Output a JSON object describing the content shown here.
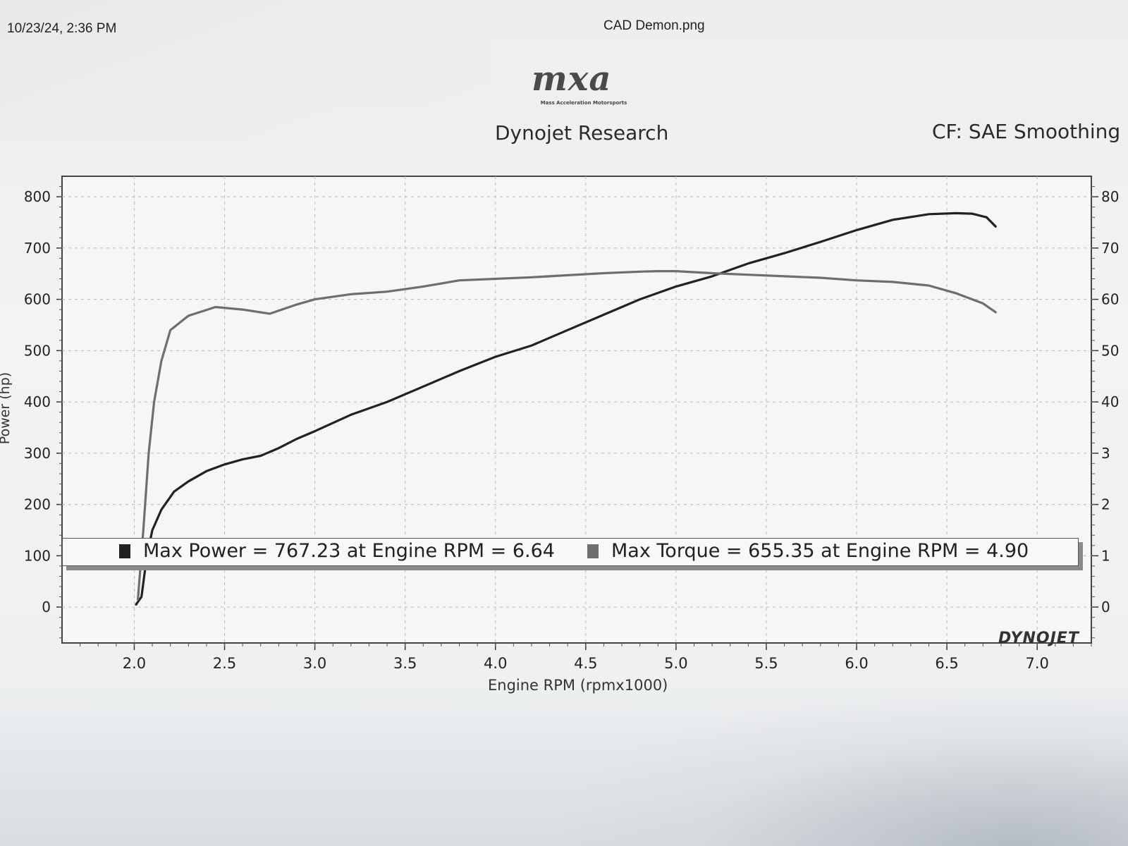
{
  "header": {
    "print_date": "10/23/24, 2:36 PM",
    "file_name": "CAD Demon.png"
  },
  "logo": {
    "text": "mxa",
    "subtitle": "Mass Acceleration Motorsports"
  },
  "dyno": {
    "title": "Dynojet Research",
    "cf": "CF: SAE Smoothing"
  },
  "legend": {
    "power_text": "Max Power = 767.23 at Engine RPM = 6.64",
    "torque_text": "Max Torque = 655.35 at Engine RPM = 4.90",
    "power_color": "#222222",
    "torque_color": "#6e6e6e"
  },
  "brand_logo": "DYNOJET",
  "chart_data": {
    "type": "line",
    "xlabel": "Engine RPM (rpmx1000)",
    "ylabel": "Power (hp)",
    "xlim": [
      1.6,
      7.3
    ],
    "ylim": [
      -70,
      840
    ],
    "x_ticks": [
      "2.0",
      "2.5",
      "3.0",
      "3.5",
      "4.0",
      "4.5",
      "5.0",
      "5.5",
      "6.0",
      "6.5",
      "7.0"
    ],
    "y_ticks": [
      "800",
      "700",
      "600",
      "500",
      "400",
      "300",
      "200",
      "100",
      "0"
    ],
    "y2_ticks": [
      "80",
      "70",
      "60",
      "50",
      "40",
      "3",
      "2",
      "1",
      "0"
    ],
    "grid": true,
    "series": [
      {
        "name": "Max Power",
        "color": "#222222",
        "points": [
          [
            2.01,
            5
          ],
          [
            2.04,
            20
          ],
          [
            2.07,
            100
          ],
          [
            2.1,
            150
          ],
          [
            2.15,
            190
          ],
          [
            2.22,
            225
          ],
          [
            2.3,
            245
          ],
          [
            2.4,
            265
          ],
          [
            2.5,
            278
          ],
          [
            2.6,
            288
          ],
          [
            2.7,
            295
          ],
          [
            2.8,
            310
          ],
          [
            2.9,
            328
          ],
          [
            3.0,
            343
          ],
          [
            3.2,
            375
          ],
          [
            3.4,
            400
          ],
          [
            3.6,
            430
          ],
          [
            3.8,
            460
          ],
          [
            4.0,
            488
          ],
          [
            4.2,
            510
          ],
          [
            4.4,
            540
          ],
          [
            4.6,
            570
          ],
          [
            4.8,
            600
          ],
          [
            5.0,
            625
          ],
          [
            5.2,
            645
          ],
          [
            5.4,
            670
          ],
          [
            5.6,
            690
          ],
          [
            5.8,
            712
          ],
          [
            6.0,
            735
          ],
          [
            6.2,
            755
          ],
          [
            6.4,
            766
          ],
          [
            6.55,
            768
          ],
          [
            6.64,
            767
          ],
          [
            6.72,
            760
          ],
          [
            6.77,
            742
          ]
        ]
      },
      {
        "name": "Max Torque",
        "color": "#6e6e6e",
        "points": [
          [
            2.02,
            15
          ],
          [
            2.05,
            150
          ],
          [
            2.08,
            300
          ],
          [
            2.11,
            400
          ],
          [
            2.15,
            480
          ],
          [
            2.2,
            540
          ],
          [
            2.3,
            568
          ],
          [
            2.45,
            585
          ],
          [
            2.6,
            580
          ],
          [
            2.75,
            572
          ],
          [
            2.9,
            590
          ],
          [
            3.0,
            600
          ],
          [
            3.2,
            610
          ],
          [
            3.4,
            615
          ],
          [
            3.6,
            625
          ],
          [
            3.8,
            637
          ],
          [
            4.0,
            640
          ],
          [
            4.2,
            643
          ],
          [
            4.4,
            647
          ],
          [
            4.6,
            651
          ],
          [
            4.8,
            654
          ],
          [
            4.9,
            655
          ],
          [
            5.0,
            655
          ],
          [
            5.2,
            651
          ],
          [
            5.4,
            648
          ],
          [
            5.6,
            645
          ],
          [
            5.8,
            642
          ],
          [
            6.0,
            637
          ],
          [
            6.2,
            634
          ],
          [
            6.4,
            627
          ],
          [
            6.55,
            612
          ],
          [
            6.7,
            592
          ],
          [
            6.77,
            575
          ]
        ]
      }
    ]
  }
}
